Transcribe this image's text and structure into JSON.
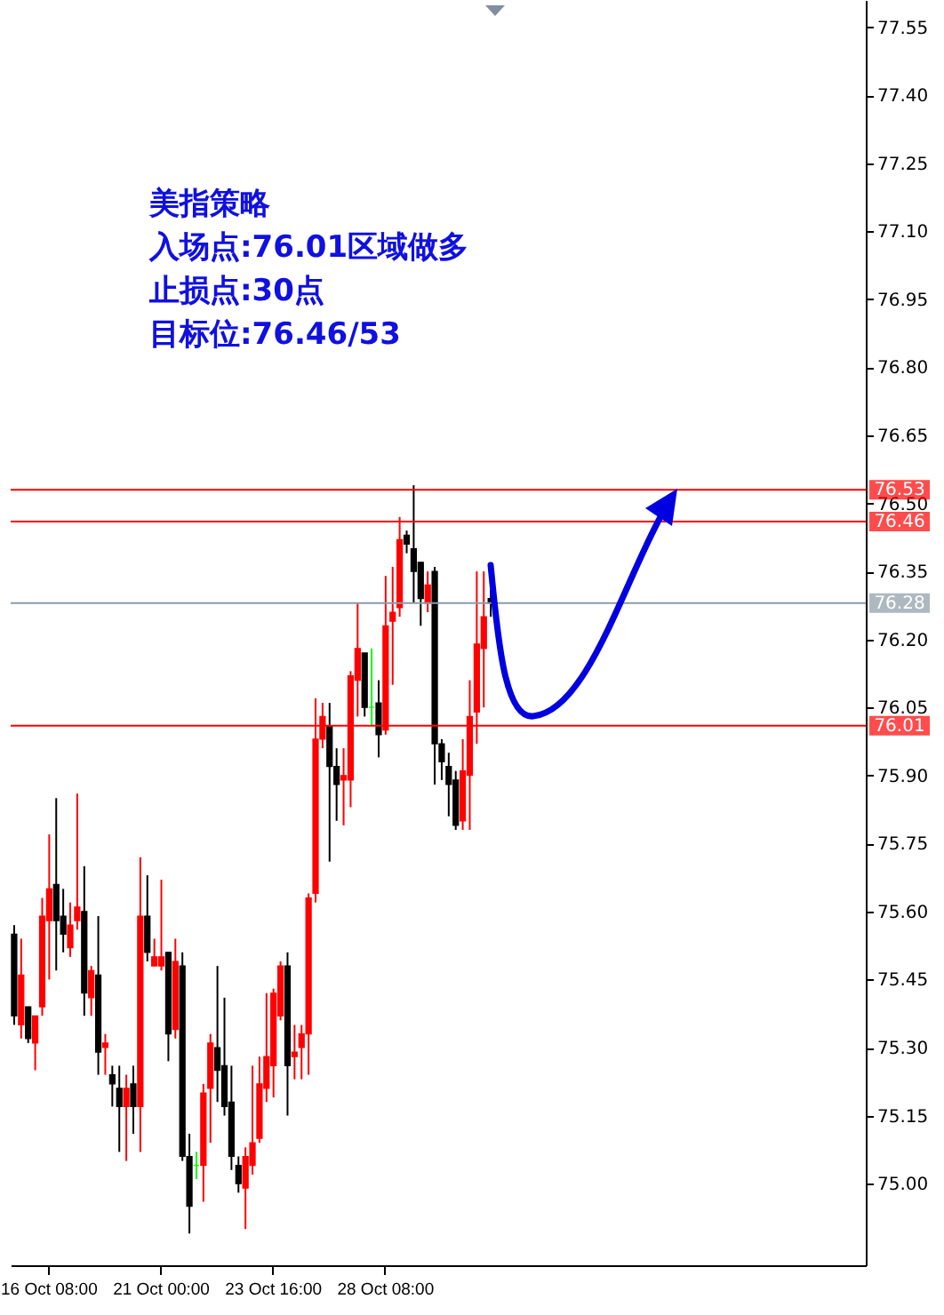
{
  "chart_data": {
    "type": "candlestick",
    "annotations": [
      "美指策略",
      "入场点:76.01区域做多",
      "止损点:30点",
      "目标位:76.46/53"
    ],
    "categories": [
      null,
      null,
      null,
      null,
      null,
      "16 Oct 08:00",
      null,
      null,
      null,
      null,
      null,
      null,
      null,
      null,
      null,
      null,
      null,
      null,
      null,
      null,
      null,
      "21 Oct 00:00",
      null,
      null,
      null,
      null,
      null,
      null,
      null,
      null,
      null,
      null,
      null,
      null,
      null,
      null,
      null,
      "23 Oct 16:00",
      null,
      null,
      null,
      null,
      null,
      null,
      null,
      null,
      null,
      null,
      null,
      null,
      null,
      null,
      null,
      "28 Oct 08:00",
      null,
      null,
      null,
      null,
      null,
      null,
      null,
      null,
      null,
      null,
      null,
      null,
      null,
      null,
      null,
      null,
      null,
      null,
      null,
      null,
      null,
      null,
      null,
      null,
      null,
      null,
      null,
      null,
      null,
      null,
      null,
      null,
      null,
      null,
      null,
      null,
      null,
      null,
      null,
      null,
      null,
      null,
      null,
      null,
      null,
      null,
      null,
      null,
      null,
      null,
      null,
      null,
      null,
      null,
      null,
      null,
      null,
      null,
      null,
      null,
      null,
      null,
      null,
      null,
      null,
      null,
      null,
      null
    ],
    "ohlc": [
      [
        75.55,
        75.57,
        75.35,
        75.37
      ],
      [
        75.35,
        75.54,
        75.32,
        75.46
      ],
      [
        75.39,
        75.39,
        75.31,
        75.32
      ],
      [
        75.31,
        75.37,
        75.25,
        75.37
      ],
      [
        75.39,
        75.63,
        75.37,
        75.59
      ],
      [
        75.58,
        75.77,
        75.45,
        75.65
      ],
      [
        75.66,
        75.85,
        75.47,
        75.58
      ],
      [
        75.59,
        75.65,
        75.51,
        75.55
      ],
      [
        75.52,
        75.62,
        75.5,
        75.57
      ],
      [
        75.58,
        75.86,
        75.56,
        75.61
      ],
      [
        75.6,
        75.7,
        75.37,
        75.42
      ],
      [
        75.41,
        75.48,
        75.37,
        75.47
      ],
      [
        75.46,
        75.59,
        75.24,
        75.29
      ],
      [
        75.3,
        75.33,
        75.24,
        75.31
      ],
      [
        75.24,
        75.26,
        75.17,
        75.22
      ],
      [
        75.21,
        75.26,
        75.07,
        75.17
      ],
      [
        75.17,
        75.24,
        75.05,
        75.21
      ],
      [
        75.22,
        75.26,
        75.11,
        75.17
      ],
      [
        75.17,
        75.72,
        75.07,
        75.59
      ],
      [
        75.59,
        75.68,
        75.49,
        75.51
      ],
      [
        75.48,
        75.54,
        75.48,
        75.5
      ],
      [
        75.48,
        75.67,
        75.47,
        75.5
      ],
      [
        75.51,
        75.51,
        75.27,
        75.33
      ],
      [
        75.34,
        75.54,
        75.32,
        75.49
      ],
      [
        75.48,
        75.51,
        75.05,
        75.06
      ],
      [
        75.06,
        75.11,
        74.89,
        74.95
      ],
      [
        75.04,
        75.07,
        75.01,
        75.04
      ],
      [
        75.04,
        75.22,
        74.96,
        75.2
      ],
      [
        75.21,
        75.33,
        75.09,
        75.31
      ],
      [
        75.3,
        75.48,
        75.18,
        75.25
      ],
      [
        75.26,
        75.41,
        75.15,
        75.17
      ],
      [
        75.18,
        75.26,
        75.03,
        75.06
      ],
      [
        75.04,
        75.06,
        74.98,
        75.0
      ],
      [
        74.99,
        75.08,
        74.9,
        75.06
      ],
      [
        75.04,
        75.26,
        75.02,
        75.09
      ],
      [
        75.1,
        75.28,
        75.09,
        75.22
      ],
      [
        75.21,
        75.42,
        75.18,
        75.28
      ],
      [
        75.26,
        75.43,
        75.19,
        75.42
      ],
      [
        75.37,
        75.49,
        75.36,
        75.48
      ],
      [
        75.48,
        75.51,
        75.15,
        75.26
      ],
      [
        75.28,
        75.35,
        75.23,
        75.29
      ],
      [
        75.3,
        75.35,
        75.23,
        75.33
      ],
      [
        75.33,
        75.64,
        75.24,
        75.63
      ],
      [
        75.64,
        76.07,
        75.62,
        75.98
      ],
      [
        75.98,
        76.06,
        75.96,
        76.03
      ],
      [
        76.01,
        76.06,
        75.71,
        75.92
      ],
      [
        75.92,
        75.96,
        75.8,
        75.88
      ],
      [
        75.89,
        75.96,
        75.79,
        75.9
      ],
      [
        75.89,
        76.13,
        75.83,
        76.12
      ],
      [
        76.11,
        76.28,
        76.03,
        76.18
      ],
      [
        76.17,
        76.17,
        76.03,
        76.05
      ],
      [
        76.05,
        76.18,
        76.01,
        76.05
      ],
      [
        76.06,
        76.11,
        75.94,
        75.99
      ],
      [
        76.0,
        76.34,
        75.99,
        76.23
      ],
      [
        76.24,
        76.36,
        76.1,
        76.26
      ],
      [
        76.27,
        76.47,
        76.25,
        76.42
      ],
      [
        76.43,
        76.44,
        76.39,
        76.41
      ],
      [
        76.4,
        76.54,
        76.28,
        76.35
      ],
      [
        76.37,
        76.37,
        76.23,
        76.29
      ],
      [
        76.28,
        76.35,
        76.26,
        76.32
      ],
      [
        76.35,
        76.36,
        75.88,
        75.97
      ],
      [
        75.97,
        75.98,
        75.89,
        75.93
      ],
      [
        75.92,
        75.95,
        75.81,
        75.88
      ],
      [
        75.89,
        75.91,
        75.78,
        75.79
      ],
      [
        75.8,
        75.98,
        75.78,
        75.91
      ],
      [
        75.9,
        76.11,
        75.78,
        76.03
      ],
      [
        76.04,
        76.35,
        75.97,
        76.19
      ],
      [
        76.18,
        76.35,
        76.05,
        76.25
      ],
      [
        76.29,
        76.31,
        76.25,
        76.28
      ],
      null,
      null,
      null,
      null,
      null,
      null,
      null,
      null,
      null,
      null,
      null,
      null,
      null,
      null,
      null,
      null,
      null,
      null,
      null,
      null,
      null,
      null,
      null,
      null,
      null,
      null,
      null,
      null,
      null,
      null,
      null,
      null,
      null,
      null,
      null,
      null,
      null,
      null,
      null,
      null,
      null,
      null,
      null,
      null,
      null,
      null,
      null,
      null,
      null,
      null,
      null,
      null,
      null
    ],
    "colors": [
      "#000000",
      "#ff0000",
      "#000000",
      "#ff0000",
      "#ff0000",
      "#ff0000",
      "#000000",
      "#000000",
      "#ff0000",
      "#ff0000",
      "#000000",
      "#ff0000",
      "#000000",
      "#ff0000",
      "#000000",
      "#000000",
      "#ff0000",
      "#000000",
      "#ff0000",
      "#000000",
      "#ff0000",
      "#ff0000",
      "#000000",
      "#ff0000",
      "#000000",
      "#000000",
      "#00ff00",
      "#ff0000",
      "#ff0000",
      "#000000",
      "#000000",
      "#000000",
      "#000000",
      "#ff0000",
      "#ff0000",
      "#ff0000",
      "#ff0000",
      "#ff0000",
      "#ff0000",
      "#000000",
      "#ff0000",
      "#ff0000",
      "#ff0000",
      "#ff0000",
      "#ff0000",
      "#000000",
      "#000000",
      "#ff0000",
      "#ff0000",
      "#ff0000",
      "#000000",
      "#00ff00",
      "#000000",
      "#ff0000",
      "#ff0000",
      "#ff0000",
      "#000000",
      "#000000",
      "#000000",
      "#ff0000",
      "#000000",
      "#000000",
      "#000000",
      "#000000",
      "#ff0000",
      "#ff0000",
      "#ff0000",
      "#ff0000",
      "#000000",
      null,
      null,
      null,
      null,
      null,
      null,
      null,
      null,
      null,
      null,
      null,
      null,
      null,
      null,
      null,
      null,
      null,
      null,
      null,
      null,
      null,
      null,
      null,
      null,
      null,
      null,
      null,
      null,
      null,
      null,
      null,
      null,
      null,
      null,
      null,
      null,
      null,
      null,
      null,
      null,
      null,
      null,
      null,
      null,
      null,
      null,
      null,
      null,
      null,
      null,
      null,
      null,
      null
    ],
    "ylim": [
      74.82,
      77.61
    ],
    "yticks": [
      {
        "value": 75.0,
        "label": "75.00"
      },
      75.15,
      {
        "value": 75.3,
        "label": "75.30"
      },
      75.45,
      {
        "value": 75.6,
        "label": "75.60"
      },
      75.75,
      {
        "value": 75.9,
        "label": "75.90"
      },
      76.05,
      {
        "value": 76.2,
        "label": "76.20"
      },
      76.35,
      {
        "value": 76.5,
        "label": "76.50"
      },
      76.65,
      {
        "value": 76.8,
        "label": "76.80"
      },
      76.95,
      {
        "value": 77.1,
        "label": "77.10"
      },
      77.25,
      {
        "value": 77.4,
        "label": "77.40"
      },
      77.55
    ],
    "ref_lines": [
      {
        "axis": "y",
        "value": 76.53,
        "label": "76.53",
        "color": "#ff0000"
      },
      {
        "axis": "y",
        "value": 76.46,
        "label": "76.46",
        "color": "#ff0000"
      },
      {
        "axis": "y",
        "value": 76.28,
        "label": "76.28",
        "color": "#8c9aa6"
      },
      {
        "axis": "y",
        "value": 76.01,
        "label": "76.01",
        "color": "#ff0000"
      }
    ],
    "grid": false
  }
}
